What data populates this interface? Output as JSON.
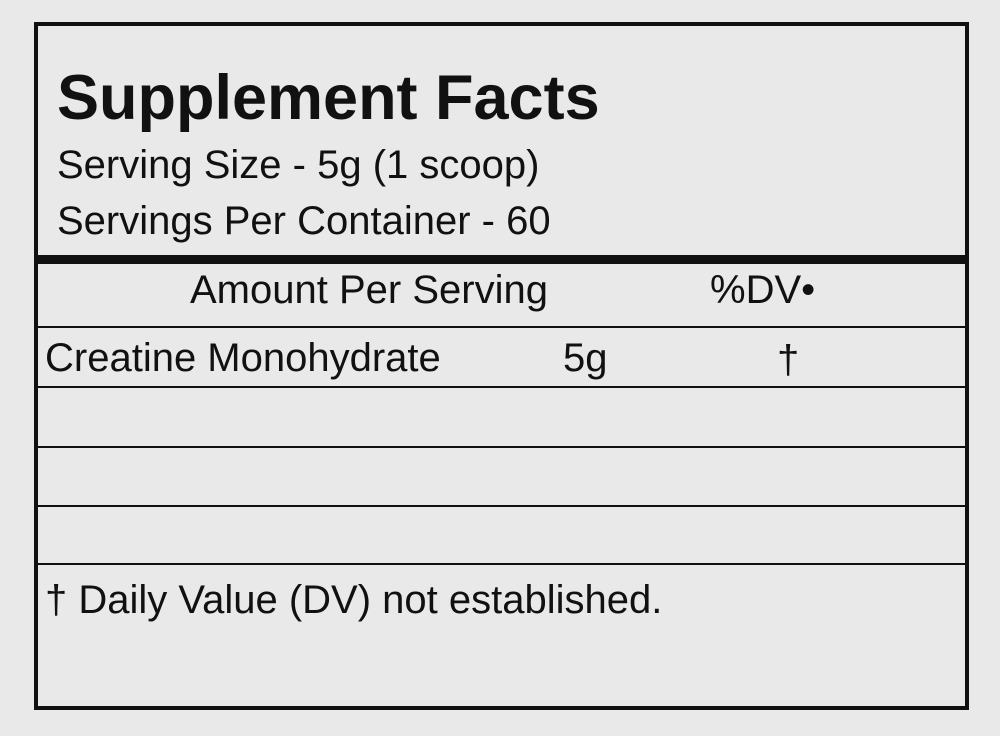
{
  "title": "Supplement Facts",
  "serving_size": "Serving Size - 5g (1 scoop)",
  "servings_per_container": "Servings Per Container - 60",
  "header": {
    "amount": "Amount Per Serving",
    "dv": "%DV•"
  },
  "ingredients": [
    {
      "name": "Creatine Monohydrate",
      "amount": "5g",
      "dv": "†"
    }
  ],
  "footnote": "† Daily Value (DV) not established."
}
